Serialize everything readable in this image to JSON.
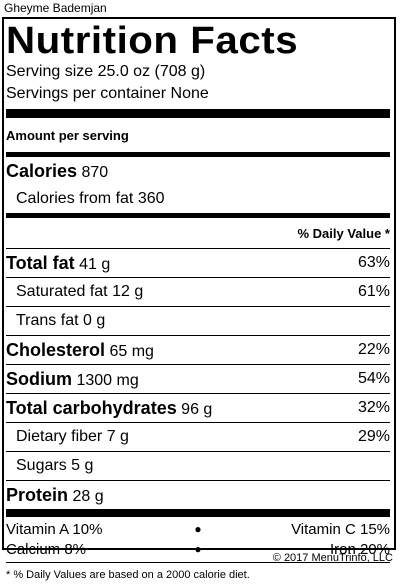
{
  "dish_name": "Gheyme Bademjan",
  "title": "Nutrition Facts",
  "serving_size": "Serving size 25.0 oz (708 g)",
  "servings_per_container": "Servings per container None",
  "amount_per_serving": "Amount per serving",
  "calories": {
    "label": "Calories",
    "value": "870"
  },
  "calories_from_fat": "Calories from fat 360",
  "daily_value_header": "% Daily Value *",
  "nutrients": [
    {
      "label": "Total fat",
      "amount": "41 g",
      "dv": "63%",
      "bold": true
    },
    {
      "label": "Saturated fat",
      "amount": "12 g",
      "dv": "61%",
      "bold": false
    },
    {
      "label": "Trans fat",
      "amount": "0 g",
      "dv": "",
      "bold": false
    },
    {
      "label": "Cholesterol",
      "amount": "65 mg",
      "dv": "22%",
      "bold": true
    },
    {
      "label": "Sodium",
      "amount": "1300 mg",
      "dv": "54%",
      "bold": true
    },
    {
      "label": "Total carbohydrates",
      "amount": "96 g",
      "dv": "32%",
      "bold": true
    },
    {
      "label": "Dietary fiber",
      "amount": "7 g",
      "dv": "29%",
      "bold": false
    },
    {
      "label": "Sugars",
      "amount": "5 g",
      "dv": "",
      "bold": false
    },
    {
      "label": "Protein",
      "amount": "28 g",
      "dv": "",
      "bold": true
    }
  ],
  "vitamins": [
    {
      "left": "Vitamin A 10%",
      "right": "Vitamin C 15%"
    },
    {
      "left": "Calcium 8%",
      "right": "Iron 20%"
    }
  ],
  "footnote": "* % Daily Values are based on a 2000 calorie diet.",
  "copyright": "© 2017 MenuTrinfo, LLC"
}
